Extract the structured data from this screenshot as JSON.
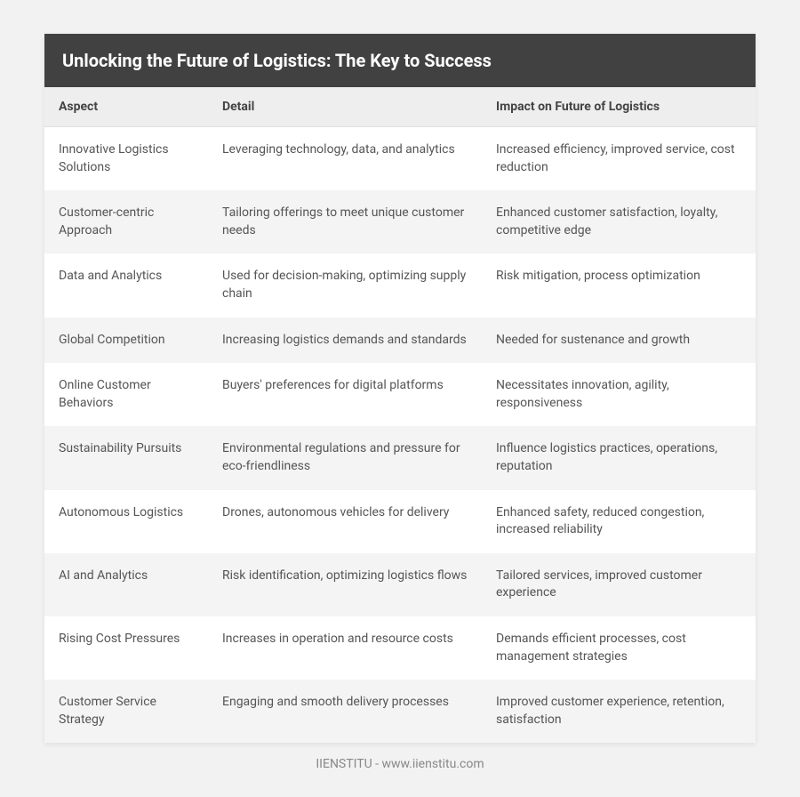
{
  "title": "Unlocking the Future of Logistics: The Key to Success",
  "columns": [
    "Aspect",
    "Detail",
    "Impact on Future of Logistics"
  ],
  "rows": [
    [
      "Innovative Logistics Solutions",
      "Leveraging technology, data, and analytics",
      "Increased efficiency, improved service, cost reduction"
    ],
    [
      "Customer-centric Approach",
      "Tailoring offerings to meet unique customer needs",
      "Enhanced customer satisfaction, loyalty, competitive edge"
    ],
    [
      "Data and Analytics",
      "Used for decision-making, optimizing supply chain",
      "Risk mitigation, process optimization"
    ],
    [
      "Global Competition",
      "Increasing logistics demands and standards",
      "Needed for sustenance and growth"
    ],
    [
      "Online Customer Behaviors",
      "Buyers' preferences for digital platforms",
      "Necessitates innovation, agility, responsiveness"
    ],
    [
      "Sustainability Pursuits",
      "Environmental regulations and pressure for eco-friendliness",
      "Influence logistics practices, operations, reputation"
    ],
    [
      "Autonomous Logistics",
      "Drones, autonomous vehicles for delivery",
      "Enhanced safety, reduced congestion, increased reliability"
    ],
    [
      "AI and Analytics",
      "Risk identification, optimizing logistics flows",
      "Tailored services, improved customer experience"
    ],
    [
      "Rising Cost Pressures",
      "Increases in operation and resource costs",
      "Demands efficient processes, cost management strategies"
    ],
    [
      "Customer Service Strategy",
      "Engaging and smooth delivery processes",
      "Improved customer experience, retention, satisfaction"
    ]
  ],
  "footer": "IIENSTITU - www.iienstitu.com",
  "styling": {
    "page_bg": "#f2f2f2",
    "card_bg": "#ffffff",
    "titlebar_bg": "#414141",
    "titlebar_color": "#ffffff",
    "titlebar_fontsize": 20,
    "header_bg": "#eeeeee",
    "header_color": "#444444",
    "header_fontsize": 14,
    "cell_fontsize": 14,
    "cell_color": "#555555",
    "row_even_bg": "#f4f4f4",
    "row_odd_bg": "#ffffff",
    "footer_color": "#888888",
    "footer_fontsize": 14,
    "column_widths_pct": [
      23,
      38.5,
      38.5
    ]
  }
}
